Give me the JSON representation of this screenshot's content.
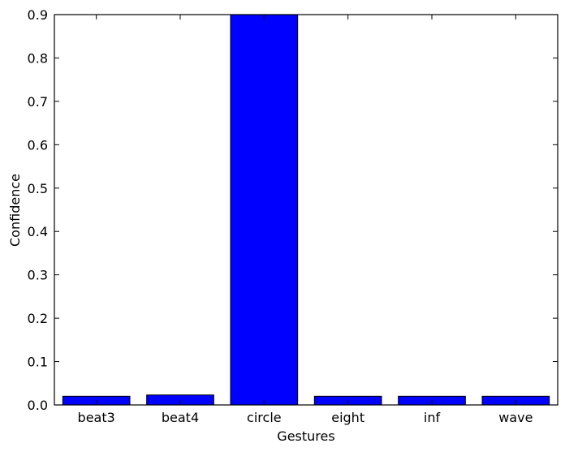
{
  "chart_data": {
    "type": "bar",
    "title": "",
    "xlabel": "Gestures",
    "ylabel": "Confidence",
    "categories": [
      "beat3",
      "beat4",
      "circle",
      "eight",
      "inf",
      "wave"
    ],
    "values": [
      0.02,
      0.023,
      0.9,
      0.02,
      0.02,
      0.02
    ],
    "ylim": [
      0,
      0.9
    ],
    "yticks": [
      0.0,
      0.1,
      0.2,
      0.3,
      0.4,
      0.5,
      0.6,
      0.7,
      0.8,
      0.9
    ],
    "ytick_labels": [
      "0.0",
      "0.1",
      "0.2",
      "0.3",
      "0.4",
      "0.5",
      "0.6",
      "0.7",
      "0.8",
      "0.9"
    ],
    "grid": false,
    "colors": {
      "bar_fill": "#0000ff",
      "bar_edge": "#000000",
      "axes": "#000000",
      "background": "#ffffff"
    }
  }
}
